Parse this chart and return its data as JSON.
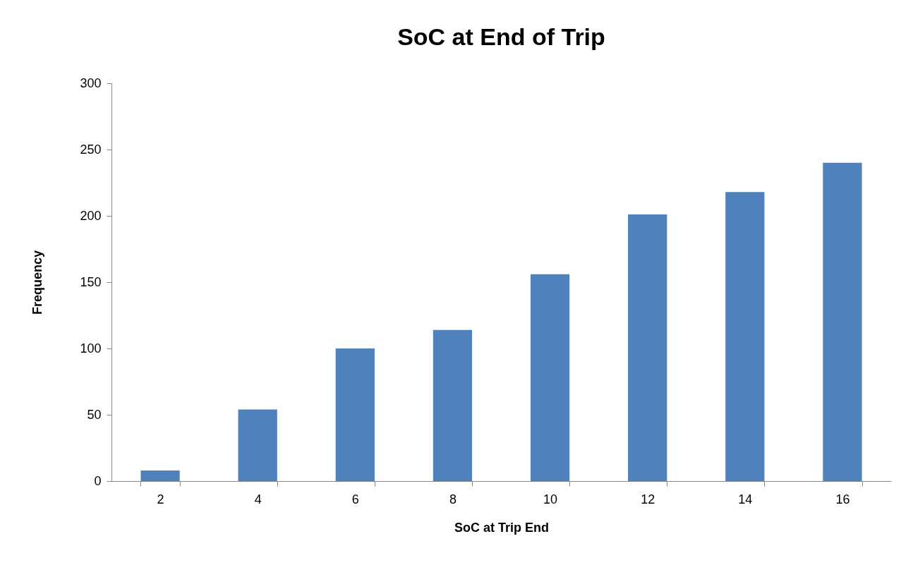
{
  "chart_data": {
    "type": "bar",
    "title": "SoC at End of Trip",
    "xlabel": "SoC at Trip End",
    "ylabel": "Frequency",
    "categories": [
      "2",
      "4",
      "6",
      "8",
      "10",
      "12",
      "14",
      "16"
    ],
    "values": [
      8,
      54,
      100,
      114,
      156,
      201,
      218,
      240
    ],
    "color": "#4f81bd",
    "ylim": [
      0,
      300
    ],
    "yticks": [
      0,
      50,
      100,
      150,
      200,
      250,
      300
    ],
    "grid": false
  }
}
